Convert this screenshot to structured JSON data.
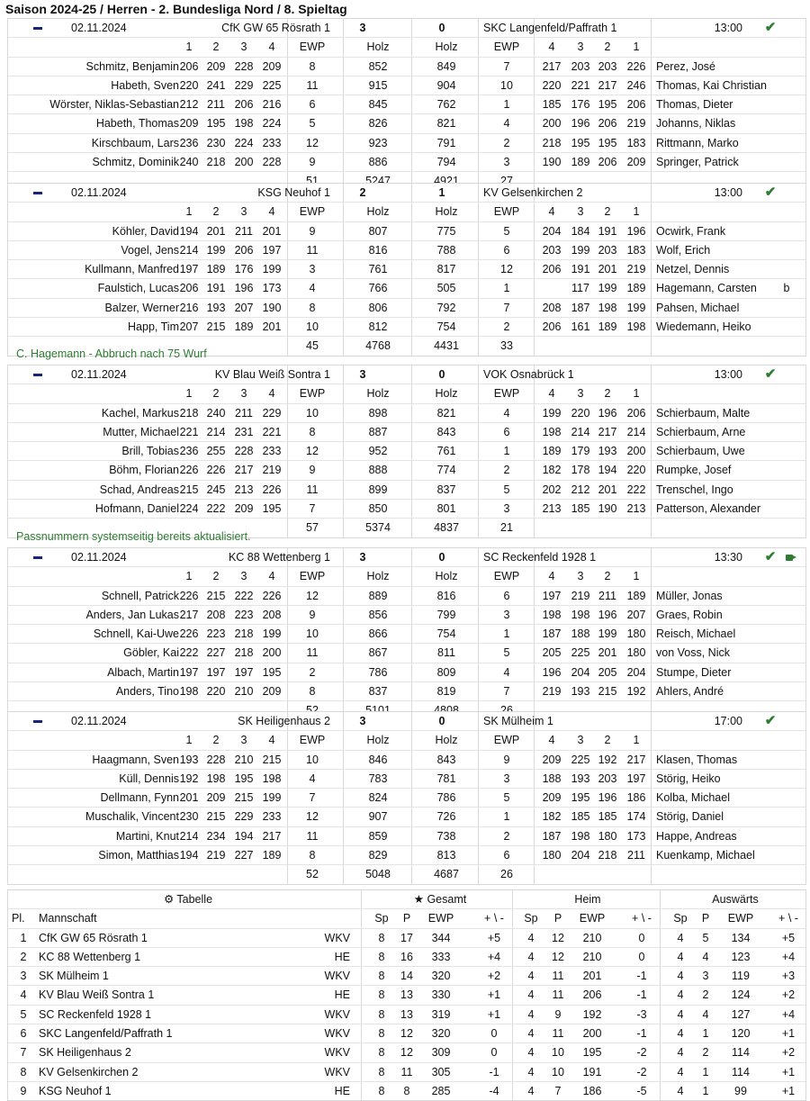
{
  "title": "Saison 2024-25 / Herren - 2. Bundesliga Nord / 8. Spieltag",
  "columns": {
    "game1": "1",
    "game2": "2",
    "game3": "3",
    "game4": "4",
    "ewp": "EWP",
    "holz": "Holz"
  },
  "matches": [
    {
      "date": "02.11.2024",
      "home_team": "CfK GW 65 Rösrath 1",
      "home_points": "3",
      "away_points": "0",
      "away_team": "SKC Langenfeld/Paffrath 1",
      "time": "13:00",
      "has_video": false,
      "players": [
        {
          "home_name": "Schmitz, Benjamin",
          "h": [
            "206",
            "209",
            "228",
            "209"
          ],
          "h_ewp": "8",
          "h_holz": "852",
          "a_holz": "849",
          "a_ewp": "7",
          "a": [
            "217",
            "203",
            "203",
            "226"
          ],
          "away_name": "Perez, José",
          "flag": ""
        },
        {
          "home_name": "Habeth, Sven",
          "h": [
            "220",
            "241",
            "229",
            "225"
          ],
          "h_ewp": "11",
          "h_holz": "915",
          "a_holz": "904",
          "a_ewp": "10",
          "a": [
            "220",
            "221",
            "217",
            "246"
          ],
          "away_name": "Thomas, Kai Christian",
          "flag": ""
        },
        {
          "home_name": "Wörster, Niklas-Sebastian",
          "h": [
            "212",
            "211",
            "206",
            "216"
          ],
          "h_ewp": "6",
          "h_holz": "845",
          "a_holz": "762",
          "a_ewp": "1",
          "a": [
            "185",
            "176",
            "195",
            "206"
          ],
          "away_name": "Thomas, Dieter",
          "flag": ""
        },
        {
          "home_name": "Habeth, Thomas",
          "h": [
            "209",
            "195",
            "198",
            "224"
          ],
          "h_ewp": "5",
          "h_holz": "826",
          "a_holz": "821",
          "a_ewp": "4",
          "a": [
            "200",
            "196",
            "206",
            "219"
          ],
          "away_name": "Johanns, Niklas",
          "flag": ""
        },
        {
          "home_name": "Kirschbaum, Lars",
          "h": [
            "236",
            "230",
            "224",
            "233"
          ],
          "h_ewp": "12",
          "h_holz": "923",
          "a_holz": "791",
          "a_ewp": "2",
          "a": [
            "218",
            "195",
            "195",
            "183"
          ],
          "away_name": "Rittmann, Marko",
          "flag": ""
        },
        {
          "home_name": "Schmitz, Dominik",
          "h": [
            "240",
            "218",
            "200",
            "228"
          ],
          "h_ewp": "9",
          "h_holz": "886",
          "a_holz": "794",
          "a_ewp": "3",
          "a": [
            "190",
            "189",
            "206",
            "209"
          ],
          "away_name": "Springer, Patrick",
          "flag": ""
        }
      ],
      "totals": {
        "h_ewp": "51",
        "h_holz": "5247",
        "a_holz": "4921",
        "a_ewp": "27"
      },
      "note": ""
    },
    {
      "date": "02.11.2024",
      "home_team": "KSG Neuhof 1",
      "home_points": "2",
      "away_points": "1",
      "away_team": "KV Gelsenkirchen 2",
      "time": "13:00",
      "has_video": false,
      "players": [
        {
          "home_name": "Köhler, David",
          "h": [
            "194",
            "201",
            "211",
            "201"
          ],
          "h_ewp": "9",
          "h_holz": "807",
          "a_holz": "775",
          "a_ewp": "5",
          "a": [
            "204",
            "184",
            "191",
            "196"
          ],
          "away_name": "Ocwirk, Frank",
          "flag": ""
        },
        {
          "home_name": "Vogel, Jens",
          "h": [
            "214",
            "199",
            "206",
            "197"
          ],
          "h_ewp": "11",
          "h_holz": "816",
          "a_holz": "788",
          "a_ewp": "6",
          "a": [
            "203",
            "199",
            "203",
            "183"
          ],
          "away_name": "Wolf, Erich",
          "flag": ""
        },
        {
          "home_name": "Kullmann, Manfred",
          "h": [
            "197",
            "189",
            "176",
            "199"
          ],
          "h_ewp": "3",
          "h_holz": "761",
          "a_holz": "817",
          "a_ewp": "12",
          "a": [
            "206",
            "191",
            "201",
            "219"
          ],
          "away_name": "Netzel, Dennis",
          "flag": ""
        },
        {
          "home_name": "Faulstich, Lucas",
          "h": [
            "206",
            "191",
            "196",
            "173"
          ],
          "h_ewp": "4",
          "h_holz": "766",
          "a_holz": "505",
          "a_ewp": "1",
          "a": [
            "",
            "117",
            "199",
            "189"
          ],
          "away_name": "Hagemann, Carsten",
          "flag": "b"
        },
        {
          "home_name": "Balzer, Werner",
          "h": [
            "216",
            "193",
            "207",
            "190"
          ],
          "h_ewp": "8",
          "h_holz": "806",
          "a_holz": "792",
          "a_ewp": "7",
          "a": [
            "208",
            "187",
            "198",
            "199"
          ],
          "away_name": "Pahsen, Michael",
          "flag": ""
        },
        {
          "home_name": "Happ, Tim",
          "h": [
            "207",
            "215",
            "189",
            "201"
          ],
          "h_ewp": "10",
          "h_holz": "812",
          "a_holz": "754",
          "a_ewp": "2",
          "a": [
            "206",
            "161",
            "189",
            "198"
          ],
          "away_name": "Wiedemann, Heiko",
          "flag": ""
        }
      ],
      "totals": {
        "h_ewp": "45",
        "h_holz": "4768",
        "a_holz": "4431",
        "a_ewp": "33"
      },
      "note": "C. Hagemann - Abbruch nach 75 Wurf"
    },
    {
      "date": "02.11.2024",
      "home_team": "KV Blau Weiß Sontra 1",
      "home_points": "3",
      "away_points": "0",
      "away_team": "VOK Osnabrück 1",
      "time": "13:00",
      "has_video": false,
      "players": [
        {
          "home_name": "Kachel, Markus",
          "h": [
            "218",
            "240",
            "211",
            "229"
          ],
          "h_ewp": "10",
          "h_holz": "898",
          "a_holz": "821",
          "a_ewp": "4",
          "a": [
            "199",
            "220",
            "196",
            "206"
          ],
          "away_name": "Schierbaum, Malte",
          "flag": ""
        },
        {
          "home_name": "Mutter, Michael",
          "h": [
            "221",
            "214",
            "231",
            "221"
          ],
          "h_ewp": "8",
          "h_holz": "887",
          "a_holz": "843",
          "a_ewp": "6",
          "a": [
            "198",
            "214",
            "217",
            "214"
          ],
          "away_name": "Schierbaum, Arne",
          "flag": ""
        },
        {
          "home_name": "Brill, Tobias",
          "h": [
            "236",
            "255",
            "228",
            "233"
          ],
          "h_ewp": "12",
          "h_holz": "952",
          "a_holz": "761",
          "a_ewp": "1",
          "a": [
            "189",
            "179",
            "193",
            "200"
          ],
          "away_name": "Schierbaum, Uwe",
          "flag": ""
        },
        {
          "home_name": "Böhm, Florian",
          "h": [
            "226",
            "226",
            "217",
            "219"
          ],
          "h_ewp": "9",
          "h_holz": "888",
          "a_holz": "774",
          "a_ewp": "2",
          "a": [
            "182",
            "178",
            "194",
            "220"
          ],
          "away_name": "Rumpke, Josef",
          "flag": ""
        },
        {
          "home_name": "Schad, Andreas",
          "h": [
            "215",
            "245",
            "213",
            "226"
          ],
          "h_ewp": "11",
          "h_holz": "899",
          "a_holz": "837",
          "a_ewp": "5",
          "a": [
            "202",
            "212",
            "201",
            "222"
          ],
          "away_name": "Trenschel, Ingo",
          "flag": ""
        },
        {
          "home_name": "Hofmann, Daniel",
          "h": [
            "224",
            "222",
            "209",
            "195"
          ],
          "h_ewp": "7",
          "h_holz": "850",
          "a_holz": "801",
          "a_ewp": "3",
          "a": [
            "213",
            "185",
            "190",
            "213"
          ],
          "away_name": "Patterson, Alexander",
          "flag": ""
        }
      ],
      "totals": {
        "h_ewp": "57",
        "h_holz": "5374",
        "a_holz": "4837",
        "a_ewp": "21"
      },
      "note": "Passnummern systemseitig bereits aktualisiert."
    },
    {
      "date": "02.11.2024",
      "home_team": "KC 88 Wettenberg 1",
      "home_points": "3",
      "away_points": "0",
      "away_team": "SC Reckenfeld 1928 1",
      "time": "13:30",
      "has_video": true,
      "players": [
        {
          "home_name": "Schnell, Patrick",
          "h": [
            "226",
            "215",
            "222",
            "226"
          ],
          "h_ewp": "12",
          "h_holz": "889",
          "a_holz": "816",
          "a_ewp": "6",
          "a": [
            "197",
            "219",
            "211",
            "189"
          ],
          "away_name": "Müller, Jonas",
          "flag": ""
        },
        {
          "home_name": "Anders, Jan Lukas",
          "h": [
            "217",
            "208",
            "223",
            "208"
          ],
          "h_ewp": "9",
          "h_holz": "856",
          "a_holz": "799",
          "a_ewp": "3",
          "a": [
            "198",
            "198",
            "196",
            "207"
          ],
          "away_name": "Graes, Robin",
          "flag": ""
        },
        {
          "home_name": "Schnell, Kai-Uwe",
          "h": [
            "226",
            "223",
            "218",
            "199"
          ],
          "h_ewp": "10",
          "h_holz": "866",
          "a_holz": "754",
          "a_ewp": "1",
          "a": [
            "187",
            "188",
            "199",
            "180"
          ],
          "away_name": "Reisch, Michael",
          "flag": ""
        },
        {
          "home_name": "Göbler, Kai",
          "h": [
            "222",
            "227",
            "218",
            "200"
          ],
          "h_ewp": "11",
          "h_holz": "867",
          "a_holz": "811",
          "a_ewp": "5",
          "a": [
            "205",
            "225",
            "201",
            "180"
          ],
          "away_name": "von Voss, Nick",
          "flag": ""
        },
        {
          "home_name": "Albach, Martin",
          "h": [
            "197",
            "197",
            "197",
            "195"
          ],
          "h_ewp": "2",
          "h_holz": "786",
          "a_holz": "809",
          "a_ewp": "4",
          "a": [
            "196",
            "204",
            "205",
            "204"
          ],
          "away_name": "Stumpe, Dieter",
          "flag": ""
        },
        {
          "home_name": "Anders, Tino",
          "h": [
            "198",
            "220",
            "210",
            "209"
          ],
          "h_ewp": "8",
          "h_holz": "837",
          "a_holz": "819",
          "a_ewp": "7",
          "a": [
            "219",
            "193",
            "215",
            "192"
          ],
          "away_name": "Ahlers, André",
          "flag": ""
        }
      ],
      "totals": {
        "h_ewp": "52",
        "h_holz": "5101",
        "a_holz": "4808",
        "a_ewp": "26"
      },
      "note": ""
    },
    {
      "date": "02.11.2024",
      "home_team": "SK Heiligenhaus 2",
      "home_points": "3",
      "away_points": "0",
      "away_team": "SK Mülheim 1",
      "time": "17:00",
      "has_video": false,
      "players": [
        {
          "home_name": "Haagmann, Sven",
          "h": [
            "193",
            "228",
            "210",
            "215"
          ],
          "h_ewp": "10",
          "h_holz": "846",
          "a_holz": "843",
          "a_ewp": "9",
          "a": [
            "209",
            "225",
            "192",
            "217"
          ],
          "away_name": "Klasen, Thomas",
          "flag": ""
        },
        {
          "home_name": "Küll, Dennis",
          "h": [
            "192",
            "198",
            "195",
            "198"
          ],
          "h_ewp": "4",
          "h_holz": "783",
          "a_holz": "781",
          "a_ewp": "3",
          "a": [
            "188",
            "193",
            "203",
            "197"
          ],
          "away_name": "Störig, Heiko",
          "flag": ""
        },
        {
          "home_name": "Dellmann, Fynn",
          "h": [
            "201",
            "209",
            "215",
            "199"
          ],
          "h_ewp": "7",
          "h_holz": "824",
          "a_holz": "786",
          "a_ewp": "5",
          "a": [
            "209",
            "195",
            "196",
            "186"
          ],
          "away_name": "Kolba, Michael",
          "flag": ""
        },
        {
          "home_name": "Muschalik, Vincent",
          "h": [
            "230",
            "215",
            "229",
            "233"
          ],
          "h_ewp": "12",
          "h_holz": "907",
          "a_holz": "726",
          "a_ewp": "1",
          "a": [
            "182",
            "185",
            "185",
            "174"
          ],
          "away_name": "Störig, Daniel",
          "flag": ""
        },
        {
          "home_name": "Martini, Knut",
          "h": [
            "214",
            "234",
            "194",
            "217"
          ],
          "h_ewp": "11",
          "h_holz": "859",
          "a_holz": "738",
          "a_ewp": "2",
          "a": [
            "187",
            "198",
            "180",
            "173"
          ],
          "away_name": "Happe, Andreas",
          "flag": ""
        },
        {
          "home_name": "Simon, Matthias",
          "h": [
            "194",
            "219",
            "227",
            "189"
          ],
          "h_ewp": "8",
          "h_holz": "829",
          "a_holz": "813",
          "a_ewp": "6",
          "a": [
            "180",
            "204",
            "218",
            "211"
          ],
          "away_name": "Kuenkamp, Michael",
          "flag": ""
        }
      ],
      "totals": {
        "h_ewp": "52",
        "h_holz": "5048",
        "a_holz": "4687",
        "a_ewp": "26"
      },
      "note": ""
    }
  ],
  "standings": {
    "sections": {
      "table": "Tabelle",
      "overall": "Gesamt",
      "home": "Heim",
      "away": "Auswärts"
    },
    "headers": {
      "pl": "Pl.",
      "team": "Mannschaft",
      "sp": "Sp",
      "p": "P",
      "ewp": "EWP",
      "pm": "+ \\ -"
    },
    "rows": [
      {
        "pl": "1",
        "team": "CfK GW 65 Rösrath 1",
        "region": "WKV",
        "g": [
          "8",
          "17",
          "344",
          "+5"
        ],
        "h": [
          "4",
          "12",
          "210",
          "0"
        ],
        "a": [
          "4",
          "5",
          "134",
          "+5"
        ]
      },
      {
        "pl": "2",
        "team": "KC 88 Wettenberg 1",
        "region": "HE",
        "g": [
          "8",
          "16",
          "333",
          "+4"
        ],
        "h": [
          "4",
          "12",
          "210",
          "0"
        ],
        "a": [
          "4",
          "4",
          "123",
          "+4"
        ]
      },
      {
        "pl": "3",
        "team": "SK Mülheim 1",
        "region": "WKV",
        "g": [
          "8",
          "14",
          "320",
          "+2"
        ],
        "h": [
          "4",
          "11",
          "201",
          "-1"
        ],
        "a": [
          "4",
          "3",
          "119",
          "+3"
        ]
      },
      {
        "pl": "4",
        "team": "KV Blau Weiß Sontra 1",
        "region": "HE",
        "g": [
          "8",
          "13",
          "330",
          "+1"
        ],
        "h": [
          "4",
          "11",
          "206",
          "-1"
        ],
        "a": [
          "4",
          "2",
          "124",
          "+2"
        ]
      },
      {
        "pl": "5",
        "team": "SC Reckenfeld 1928 1",
        "region": "WKV",
        "g": [
          "8",
          "13",
          "319",
          "+1"
        ],
        "h": [
          "4",
          "9",
          "192",
          "-3"
        ],
        "a": [
          "4",
          "4",
          "127",
          "+4"
        ]
      },
      {
        "pl": "6",
        "team": "SKC Langenfeld/Paffrath 1",
        "region": "WKV",
        "g": [
          "8",
          "12",
          "320",
          "0"
        ],
        "h": [
          "4",
          "11",
          "200",
          "-1"
        ],
        "a": [
          "4",
          "1",
          "120",
          "+1"
        ]
      },
      {
        "pl": "7",
        "team": "SK Heiligenhaus 2",
        "region": "WKV",
        "g": [
          "8",
          "12",
          "309",
          "0"
        ],
        "h": [
          "4",
          "10",
          "195",
          "-2"
        ],
        "a": [
          "4",
          "2",
          "114",
          "+2"
        ]
      },
      {
        "pl": "8",
        "team": "KV Gelsenkirchen 2",
        "region": "WKV",
        "g": [
          "8",
          "11",
          "305",
          "-1"
        ],
        "h": [
          "4",
          "10",
          "191",
          "-2"
        ],
        "a": [
          "4",
          "1",
          "114",
          "+1"
        ]
      },
      {
        "pl": "9",
        "team": "KSG Neuhof 1",
        "region": "HE",
        "g": [
          "8",
          "8",
          "285",
          "-4"
        ],
        "h": [
          "4",
          "7",
          "186",
          "-5"
        ],
        "a": [
          "4",
          "1",
          "99",
          "+1"
        ]
      }
    ]
  },
  "colors": {
    "accent_green": "#2e7d32",
    "minus_icon": "#1a237e"
  }
}
